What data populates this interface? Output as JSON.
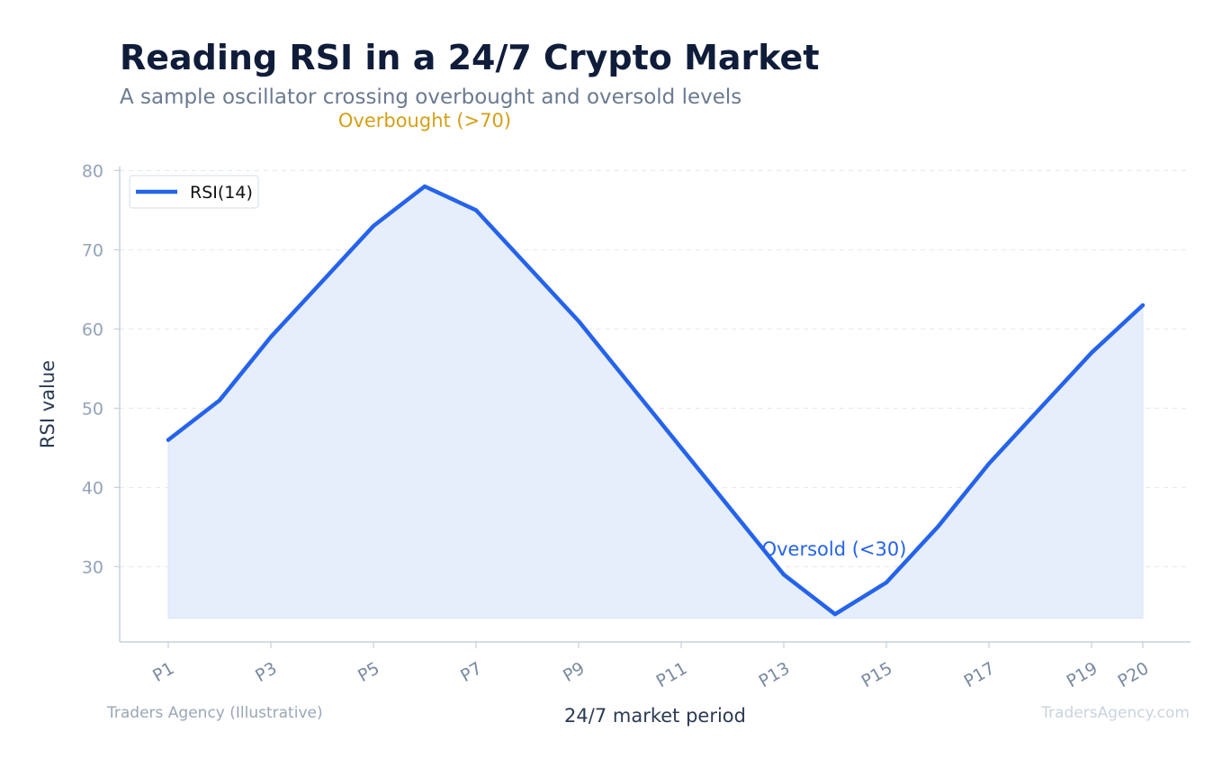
{
  "title": "Reading RSI in a 24/7 Crypto Market",
  "subtitle": "A sample oscillator crossing overbought and oversold levels",
  "annotations": {
    "overbought": "Overbought (>70)",
    "oversold": "Oversold (<30)"
  },
  "footer": {
    "left": "Traders Agency (Illustrative)",
    "right": "TradersAgency.com"
  },
  "colors": {
    "line": "#2563eb",
    "fill": "#e6eefb",
    "overbought": "#d4a017",
    "oversold": "#2563eb"
  },
  "chart_data": {
    "type": "area",
    "xlabel": "24/7 market period",
    "ylabel": "RSI value",
    "x": [
      "P1",
      "P2",
      "P3",
      "P4",
      "P5",
      "P6",
      "P7",
      "P8",
      "P9",
      "P10",
      "P11",
      "P12",
      "P13",
      "P14",
      "P15",
      "P16",
      "P17",
      "P18",
      "P19",
      "P20"
    ],
    "xticks_shown": [
      "P1",
      "P3",
      "P5",
      "P7",
      "P9",
      "P11",
      "P13",
      "P15",
      "P17",
      "P19",
      "P20"
    ],
    "series": [
      {
        "name": "RSI(14)",
        "values": [
          46,
          51,
          59,
          66,
          73,
          78,
          75,
          68,
          61,
          53,
          45,
          37,
          29,
          24,
          28,
          35,
          43,
          50,
          57,
          63
        ]
      }
    ],
    "ylim": [
      20.5,
      80.5
    ],
    "yticks": [
      30,
      40,
      50,
      60,
      70,
      80
    ],
    "fill_baseline": 23.5,
    "grid": true,
    "legend": "top-left"
  }
}
